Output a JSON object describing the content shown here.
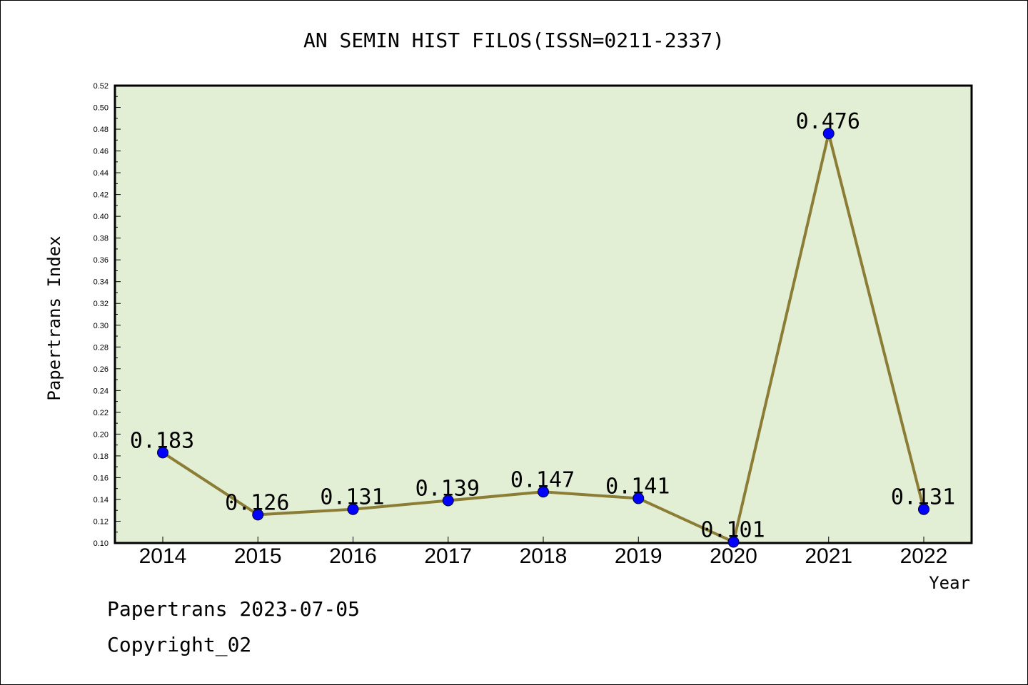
{
  "chart_data": {
    "type": "line",
    "title": "AN SEMIN HIST FILOS(ISSN=0211-2337)",
    "xlabel": "Year",
    "ylabel": "Papertrans Index",
    "categories": [
      "2014",
      "2015",
      "2016",
      "2017",
      "2018",
      "2019",
      "2020",
      "2021",
      "2022"
    ],
    "series": [
      {
        "values": [
          0.183,
          0.126,
          0.131,
          0.139,
          0.147,
          0.141,
          0.101,
          0.476,
          0.131
        ],
        "labels": [
          "0.183",
          "0.126",
          "0.131",
          "0.139",
          "0.147",
          "0.141",
          "0.101",
          "0.476",
          "0.131"
        ]
      }
    ],
    "ylim": [
      0.1,
      0.52
    ],
    "yticks": [
      "0.10",
      "0.12",
      "0.14",
      "0.16",
      "0.18",
      "0.20",
      "0.22",
      "0.24",
      "0.26",
      "0.28",
      "0.30",
      "0.32",
      "0.34",
      "0.36",
      "0.38",
      "0.40",
      "0.42",
      "0.44",
      "0.46",
      "0.48",
      "0.50",
      "0.52"
    ],
    "grid": false,
    "colors": {
      "plot_background": "#e2efd5",
      "line": "#8b7d35",
      "marker": "#0000ff"
    }
  },
  "footer": {
    "line1": "Papertrans 2023-07-05",
    "line2": "Copyright_02"
  }
}
